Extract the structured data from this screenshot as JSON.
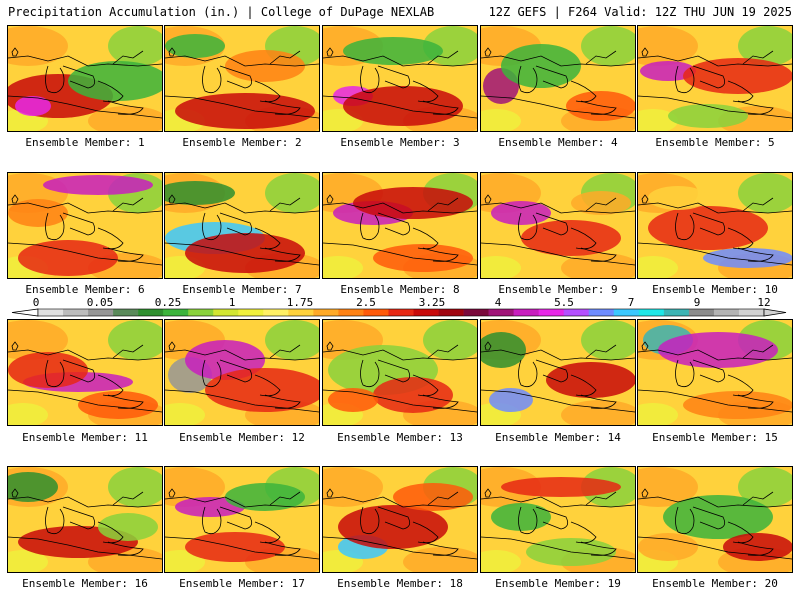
{
  "header": {
    "title": "Precipitation Accumulation (in.) | College of DuPage NEXLAB",
    "run_info": "12Z GEFS | F264 Valid: 12Z THU JUN 19 2025"
  },
  "colorbar": {
    "labels": [
      "0",
      "0.05",
      "0.25",
      "1",
      "1.75",
      "2.5",
      "3.25",
      "4",
      "5.5",
      "7",
      "9",
      "12"
    ],
    "colors": [
      "#e0e0e0",
      "#bcbcbc",
      "#969696",
      "#5a8a5a",
      "#2f8f2f",
      "#3cb43c",
      "#8ad23c",
      "#d2e632",
      "#f0f03c",
      "#fff064",
      "#ffd23c",
      "#ffaa28",
      "#ff8214",
      "#ff5a0a",
      "#e62814",
      "#c80a0a",
      "#a0050f",
      "#7a0a3c",
      "#a01478",
      "#c81ebe",
      "#e628e6",
      "#b450ff",
      "#6e8cff",
      "#3cc8ff",
      "#1ee6e6",
      "#3cb4b4",
      "#8c8c8c",
      "#b4b4b4",
      "#d2d2d2"
    ]
  },
  "panels": [
    {
      "caption": "Ensemble Member: 1"
    },
    {
      "caption": "Ensemble Member: 2"
    },
    {
      "caption": "Ensemble Member: 3"
    },
    {
      "caption": "Ensemble Member: 4"
    },
    {
      "caption": "Ensemble Member: 5"
    },
    {
      "caption": "Ensemble Member: 6"
    },
    {
      "caption": "Ensemble Member: 7"
    },
    {
      "caption": "Ensemble Member: 8"
    },
    {
      "caption": "Ensemble Member: 9"
    },
    {
      "caption": "Ensemble Member: 10"
    },
    {
      "caption": "Ensemble Member: 11"
    },
    {
      "caption": "Ensemble Member: 12"
    },
    {
      "caption": "Ensemble Member: 13"
    },
    {
      "caption": "Ensemble Member: 14"
    },
    {
      "caption": "Ensemble Member: 15"
    },
    {
      "caption": "Ensemble Member: 16"
    },
    {
      "caption": "Ensemble Member: 17"
    },
    {
      "caption": "Ensemble Member: 18"
    },
    {
      "caption": "Ensemble Member: 19"
    },
    {
      "caption": "Ensemble Member: 20"
    }
  ]
}
